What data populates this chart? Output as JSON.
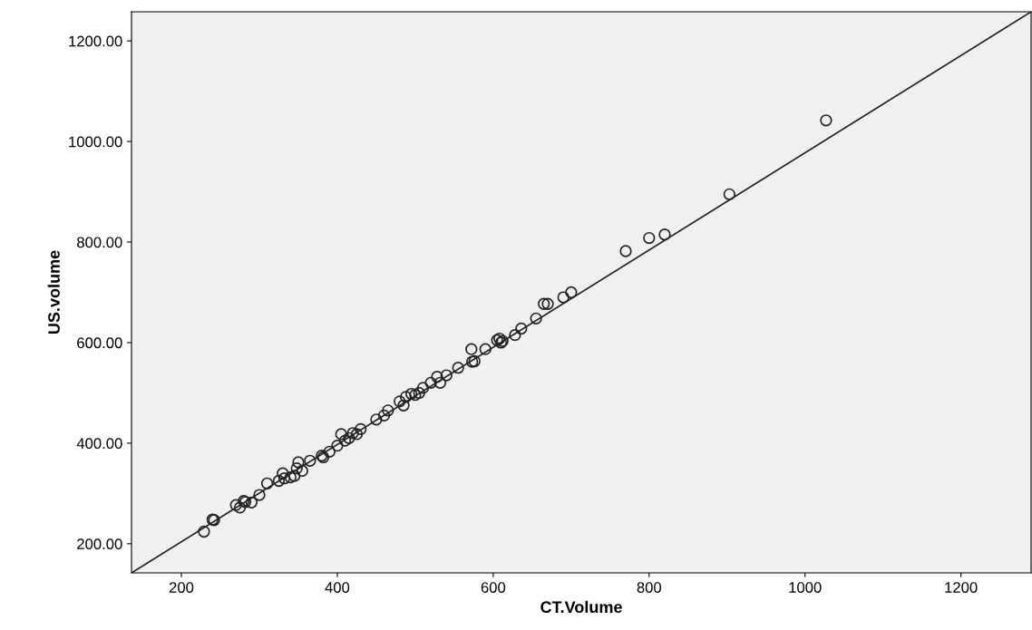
{
  "chart_data": {
    "type": "scatter",
    "xlabel": "CT.Volume",
    "ylabel": "US.volume",
    "xlim": [
      136,
      1290
    ],
    "ylim": [
      142,
      1258
    ],
    "xticks": [
      200,
      400,
      600,
      800,
      1000,
      1200
    ],
    "yticks": [
      {
        "value": 200,
        "label": "200.00"
      },
      {
        "value": 400,
        "label": "400.00"
      },
      {
        "value": 600,
        "label": "600.00"
      },
      {
        "value": 800,
        "label": "800.00"
      },
      {
        "value": 1000,
        "label": "1000.00"
      },
      {
        "value": 1200,
        "label": "1200.00"
      }
    ],
    "grid": false,
    "series": [
      {
        "marker": "circle",
        "color": "#222222",
        "x": [
          229,
          240,
          242,
          270,
          275,
          280,
          282,
          290,
          300,
          310,
          325,
          330,
          332,
          340,
          345,
          348,
          350,
          355,
          365,
          380,
          382,
          390,
          400,
          405,
          410,
          415,
          420,
          425,
          430,
          450,
          460,
          465,
          480,
          485,
          488,
          495,
          500,
          505,
          510,
          520,
          528,
          532,
          540,
          555,
          572,
          573,
          576,
          590,
          605,
          608,
          610,
          612,
          628,
          636,
          655,
          665,
          670,
          690,
          700,
          770,
          800,
          820,
          903,
          1027
        ],
        "values": [
          224,
          248,
          247,
          277,
          272,
          285,
          283,
          282,
          297,
          320,
          325,
          340,
          330,
          332,
          335,
          350,
          362,
          345,
          365,
          375,
          372,
          383,
          395,
          418,
          405,
          410,
          420,
          418,
          428,
          447,
          455,
          465,
          483,
          475,
          492,
          498,
          496,
          500,
          510,
          520,
          532,
          520,
          535,
          550,
          587,
          562,
          563,
          587,
          605,
          608,
          600,
          603,
          615,
          628,
          648,
          677,
          677,
          690,
          700,
          782,
          808,
          815,
          895,
          1042
        ]
      },
      {
        "type": "line",
        "marker": "none",
        "color": "#222222",
        "x": [
          136,
          1290
        ],
        "values": [
          142,
          1258
        ]
      }
    ]
  }
}
